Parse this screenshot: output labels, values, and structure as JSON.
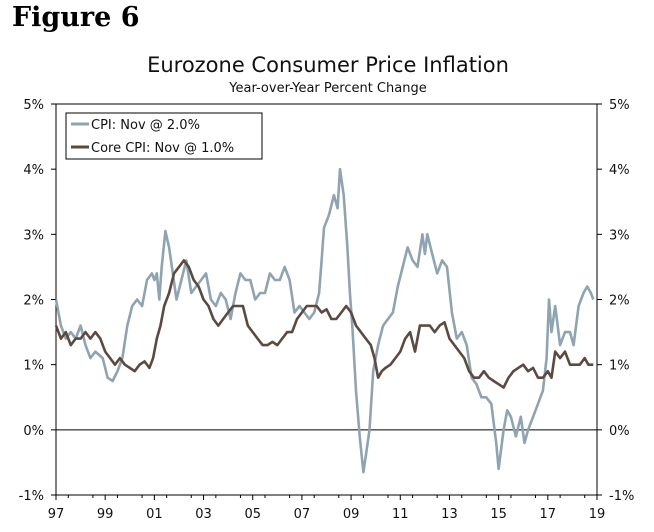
{
  "figure_label": "Figure 6",
  "chart_data": {
    "type": "line",
    "title": "Eurozone Consumer Price Inflation",
    "subtitle": "Year-over-Year Percent Change",
    "xlabel": "",
    "ylabel": "",
    "xlim": [
      1997.0,
      2019.0
    ],
    "ylim": [
      -1,
      5
    ],
    "x_ticks": [
      "97",
      "99",
      "01",
      "03",
      "05",
      "07",
      "09",
      "11",
      "13",
      "15",
      "17",
      "19"
    ],
    "y_ticks_left": [
      "5%",
      "4%",
      "3%",
      "2%",
      "1%",
      "0%",
      "-1%"
    ],
    "y_ticks_right": [
      "5%",
      "4%",
      "3%",
      "2%",
      "1%",
      "0%",
      "-1%"
    ],
    "legend_position": "top-left",
    "series": [
      {
        "name": "CPI: Nov @ 2.0%",
        "color": "#8ea4b2",
        "points": [
          [
            1997.0,
            2.0
          ],
          [
            1997.2,
            1.6
          ],
          [
            1997.4,
            1.4
          ],
          [
            1997.6,
            1.5
          ],
          [
            1997.8,
            1.4
          ],
          [
            1998.0,
            1.6
          ],
          [
            1998.2,
            1.3
          ],
          [
            1998.4,
            1.1
          ],
          [
            1998.6,
            1.2
          ],
          [
            1998.9,
            1.1
          ],
          [
            1999.1,
            0.8
          ],
          [
            1999.3,
            0.75
          ],
          [
            1999.5,
            0.9
          ],
          [
            1999.7,
            1.1
          ],
          [
            1999.9,
            1.6
          ],
          [
            2000.1,
            1.9
          ],
          [
            2000.3,
            2.0
          ],
          [
            2000.5,
            1.9
          ],
          [
            2000.7,
            2.3
          ],
          [
            2000.9,
            2.4
          ],
          [
            2001.0,
            2.3
          ],
          [
            2001.1,
            2.4
          ],
          [
            2001.2,
            2.0
          ],
          [
            2001.3,
            2.5
          ],
          [
            2001.45,
            3.05
          ],
          [
            2001.6,
            2.8
          ],
          [
            2001.75,
            2.4
          ],
          [
            2001.9,
            2.0
          ],
          [
            2002.1,
            2.3
          ],
          [
            2002.3,
            2.6
          ],
          [
            2002.5,
            2.1
          ],
          [
            2002.7,
            2.2
          ],
          [
            2002.9,
            2.3
          ],
          [
            2003.1,
            2.4
          ],
          [
            2003.3,
            2.0
          ],
          [
            2003.5,
            1.9
          ],
          [
            2003.7,
            2.1
          ],
          [
            2003.9,
            2.0
          ],
          [
            2004.1,
            1.7
          ],
          [
            2004.3,
            2.1
          ],
          [
            2004.5,
            2.4
          ],
          [
            2004.7,
            2.3
          ],
          [
            2004.9,
            2.3
          ],
          [
            2005.1,
            2.0
          ],
          [
            2005.3,
            2.1
          ],
          [
            2005.5,
            2.1
          ],
          [
            2005.7,
            2.4
          ],
          [
            2005.9,
            2.3
          ],
          [
            2006.1,
            2.3
          ],
          [
            2006.3,
            2.5
          ],
          [
            2006.5,
            2.3
          ],
          [
            2006.7,
            1.8
          ],
          [
            2006.9,
            1.9
          ],
          [
            2007.1,
            1.8
          ],
          [
            2007.3,
            1.7
          ],
          [
            2007.5,
            1.8
          ],
          [
            2007.7,
            2.1
          ],
          [
            2007.8,
            2.6
          ],
          [
            2007.9,
            3.1
          ],
          [
            2008.1,
            3.3
          ],
          [
            2008.3,
            3.6
          ],
          [
            2008.45,
            3.4
          ],
          [
            2008.55,
            4.0
          ],
          [
            2008.7,
            3.6
          ],
          [
            2008.85,
            2.8
          ],
          [
            2008.95,
            2.1
          ],
          [
            2009.05,
            1.6
          ],
          [
            2009.2,
            0.6
          ],
          [
            2009.35,
            -0.1
          ],
          [
            2009.5,
            -0.65
          ],
          [
            2009.6,
            -0.4
          ],
          [
            2009.75,
            0.0
          ],
          [
            2009.9,
            0.9
          ],
          [
            2010.1,
            1.3
          ],
          [
            2010.3,
            1.6
          ],
          [
            2010.5,
            1.7
          ],
          [
            2010.7,
            1.8
          ],
          [
            2010.9,
            2.2
          ],
          [
            2011.1,
            2.5
          ],
          [
            2011.3,
            2.8
          ],
          [
            2011.5,
            2.6
          ],
          [
            2011.7,
            2.5
          ],
          [
            2011.9,
            3.0
          ],
          [
            2012.0,
            2.7
          ],
          [
            2012.1,
            3.0
          ],
          [
            2012.3,
            2.7
          ],
          [
            2012.5,
            2.4
          ],
          [
            2012.7,
            2.6
          ],
          [
            2012.9,
            2.5
          ],
          [
            2013.1,
            1.8
          ],
          [
            2013.3,
            1.4
          ],
          [
            2013.5,
            1.5
          ],
          [
            2013.7,
            1.3
          ],
          [
            2013.9,
            0.8
          ],
          [
            2014.1,
            0.7
          ],
          [
            2014.3,
            0.5
          ],
          [
            2014.5,
            0.5
          ],
          [
            2014.7,
            0.4
          ],
          [
            2014.9,
            -0.2
          ],
          [
            2015.0,
            -0.6
          ],
          [
            2015.1,
            -0.3
          ],
          [
            2015.2,
            0.0
          ],
          [
            2015.35,
            0.3
          ],
          [
            2015.5,
            0.2
          ],
          [
            2015.7,
            -0.1
          ],
          [
            2015.9,
            0.2
          ],
          [
            2016.05,
            -0.2
          ],
          [
            2016.2,
            0.0
          ],
          [
            2016.4,
            0.2
          ],
          [
            2016.6,
            0.4
          ],
          [
            2016.8,
            0.6
          ],
          [
            2016.95,
            1.1
          ],
          [
            2017.05,
            2.0
          ],
          [
            2017.15,
            1.5
          ],
          [
            2017.3,
            1.9
          ],
          [
            2017.5,
            1.3
          ],
          [
            2017.7,
            1.5
          ],
          [
            2017.9,
            1.5
          ],
          [
            2018.05,
            1.3
          ],
          [
            2018.25,
            1.9
          ],
          [
            2018.45,
            2.1
          ],
          [
            2018.6,
            2.2
          ],
          [
            2018.75,
            2.1
          ],
          [
            2018.85,
            2.0
          ]
        ]
      },
      {
        "name": "Core CPI: Nov @ 1.0%",
        "color": "#5c4a3f",
        "points": [
          [
            1997.0,
            1.6
          ],
          [
            1997.2,
            1.4
          ],
          [
            1997.4,
            1.5
          ],
          [
            1997.6,
            1.3
          ],
          [
            1997.8,
            1.4
          ],
          [
            1998.0,
            1.4
          ],
          [
            1998.2,
            1.5
          ],
          [
            1998.4,
            1.4
          ],
          [
            1998.6,
            1.5
          ],
          [
            1998.8,
            1.4
          ],
          [
            1999.0,
            1.2
          ],
          [
            1999.2,
            1.1
          ],
          [
            1999.4,
            1.0
          ],
          [
            1999.6,
            1.1
          ],
          [
            1999.8,
            1.0
          ],
          [
            2000.0,
            0.95
          ],
          [
            2000.2,
            0.9
          ],
          [
            2000.4,
            1.0
          ],
          [
            2000.6,
            1.05
          ],
          [
            2000.8,
            0.95
          ],
          [
            2000.95,
            1.1
          ],
          [
            2001.1,
            1.4
          ],
          [
            2001.25,
            1.6
          ],
          [
            2001.4,
            1.9
          ],
          [
            2001.6,
            2.1
          ],
          [
            2001.8,
            2.4
          ],
          [
            2002.0,
            2.5
          ],
          [
            2002.2,
            2.6
          ],
          [
            2002.4,
            2.5
          ],
          [
            2002.6,
            2.3
          ],
          [
            2002.8,
            2.2
          ],
          [
            2003.0,
            2.0
          ],
          [
            2003.2,
            1.9
          ],
          [
            2003.4,
            1.7
          ],
          [
            2003.6,
            1.6
          ],
          [
            2003.8,
            1.7
          ],
          [
            2004.0,
            1.8
          ],
          [
            2004.2,
            1.9
          ],
          [
            2004.4,
            1.9
          ],
          [
            2004.6,
            1.9
          ],
          [
            2004.8,
            1.6
          ],
          [
            2005.0,
            1.5
          ],
          [
            2005.2,
            1.4
          ],
          [
            2005.4,
            1.3
          ],
          [
            2005.6,
            1.3
          ],
          [
            2005.8,
            1.35
          ],
          [
            2006.0,
            1.3
          ],
          [
            2006.2,
            1.4
          ],
          [
            2006.4,
            1.5
          ],
          [
            2006.6,
            1.5
          ],
          [
            2006.8,
            1.7
          ],
          [
            2007.0,
            1.8
          ],
          [
            2007.2,
            1.9
          ],
          [
            2007.4,
            1.9
          ],
          [
            2007.6,
            1.9
          ],
          [
            2007.8,
            1.8
          ],
          [
            2008.0,
            1.85
          ],
          [
            2008.2,
            1.7
          ],
          [
            2008.4,
            1.7
          ],
          [
            2008.6,
            1.8
          ],
          [
            2008.8,
            1.9
          ],
          [
            2009.0,
            1.8
          ],
          [
            2009.2,
            1.6
          ],
          [
            2009.4,
            1.5
          ],
          [
            2009.6,
            1.4
          ],
          [
            2009.8,
            1.3
          ],
          [
            2009.95,
            1.1
          ],
          [
            2010.1,
            0.8
          ],
          [
            2010.25,
            0.9
          ],
          [
            2010.4,
            0.95
          ],
          [
            2010.6,
            1.0
          ],
          [
            2010.8,
            1.1
          ],
          [
            2011.0,
            1.2
          ],
          [
            2011.2,
            1.4
          ],
          [
            2011.4,
            1.5
          ],
          [
            2011.6,
            1.2
          ],
          [
            2011.8,
            1.6
          ],
          [
            2012.0,
            1.6
          ],
          [
            2012.2,
            1.6
          ],
          [
            2012.4,
            1.5
          ],
          [
            2012.6,
            1.6
          ],
          [
            2012.8,
            1.65
          ],
          [
            2013.0,
            1.4
          ],
          [
            2013.2,
            1.3
          ],
          [
            2013.4,
            1.2
          ],
          [
            2013.6,
            1.1
          ],
          [
            2013.8,
            0.9
          ],
          [
            2014.0,
            0.8
          ],
          [
            2014.2,
            0.8
          ],
          [
            2014.4,
            0.9
          ],
          [
            2014.6,
            0.8
          ],
          [
            2014.8,
            0.75
          ],
          [
            2015.0,
            0.7
          ],
          [
            2015.2,
            0.65
          ],
          [
            2015.4,
            0.8
          ],
          [
            2015.6,
            0.9
          ],
          [
            2015.8,
            0.95
          ],
          [
            2016.0,
            1.0
          ],
          [
            2016.2,
            0.9
          ],
          [
            2016.4,
            0.95
          ],
          [
            2016.6,
            0.8
          ],
          [
            2016.8,
            0.8
          ],
          [
            2017.0,
            0.9
          ],
          [
            2017.15,
            0.8
          ],
          [
            2017.3,
            1.2
          ],
          [
            2017.5,
            1.1
          ],
          [
            2017.7,
            1.2
          ],
          [
            2017.9,
            1.0
          ],
          [
            2018.1,
            1.0
          ],
          [
            2018.3,
            1.0
          ],
          [
            2018.5,
            1.1
          ],
          [
            2018.65,
            1.0
          ],
          [
            2018.85,
            1.0
          ]
        ]
      }
    ]
  }
}
